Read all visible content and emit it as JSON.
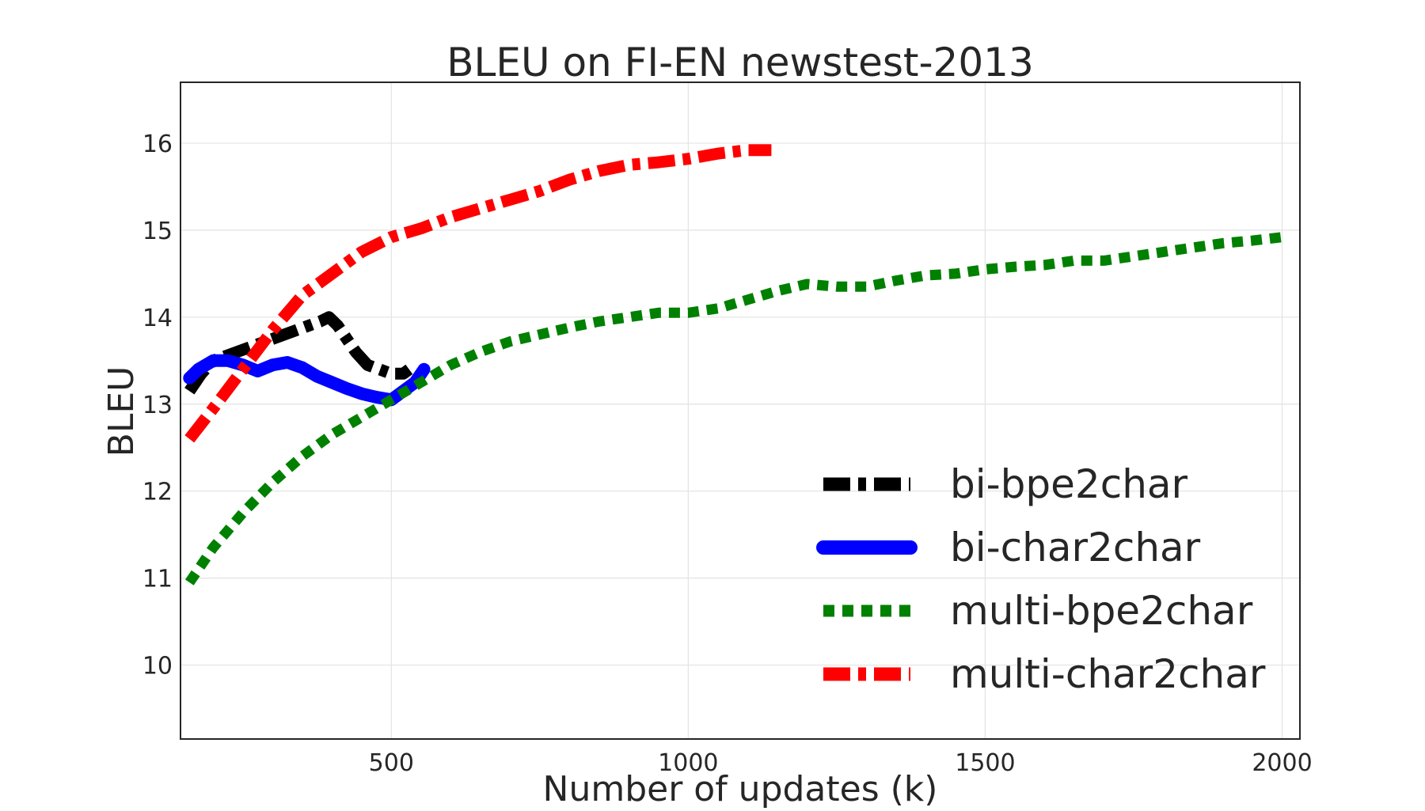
{
  "chart_data": {
    "type": "line",
    "title": "BLEU on FI-EN newstest-2013",
    "xlabel": "Number of updates (k)",
    "ylabel": "BLEU",
    "xlim": [
      145,
      2030
    ],
    "ylim": [
      9.15,
      16.7
    ],
    "xticks": [
      500,
      1000,
      1500,
      2000
    ],
    "yticks": [
      10,
      11,
      12,
      13,
      14,
      15,
      16
    ],
    "grid": true,
    "legend_position": "lower-right",
    "series": [
      {
        "name": "bi-bpe2char",
        "color": "#000000",
        "style": "dashdot",
        "x": [
          160,
          180,
          200,
          220,
          240,
          260,
          280,
          300,
          320,
          340,
          360,
          380,
          395,
          410,
          425,
          440,
          460,
          480,
          500,
          520,
          530
        ],
        "y": [
          13.15,
          13.35,
          13.5,
          13.55,
          13.6,
          13.65,
          13.7,
          13.75,
          13.8,
          13.85,
          13.9,
          13.95,
          14.0,
          13.9,
          13.75,
          13.6,
          13.45,
          13.4,
          13.35,
          13.35,
          13.4
        ]
      },
      {
        "name": "bi-char2char",
        "color": "#0000ff",
        "style": "solid",
        "x": [
          160,
          175,
          200,
          225,
          250,
          275,
          300,
          325,
          350,
          375,
          400,
          425,
          450,
          475,
          500,
          520,
          540,
          555
        ],
        "y": [
          13.3,
          13.4,
          13.5,
          13.5,
          13.45,
          13.38,
          13.45,
          13.48,
          13.42,
          13.32,
          13.25,
          13.18,
          13.12,
          13.08,
          13.05,
          13.15,
          13.25,
          13.4
        ]
      },
      {
        "name": "multi-bpe2char",
        "color": "#008000",
        "style": "dotted",
        "x": [
          160,
          200,
          250,
          300,
          350,
          400,
          450,
          500,
          550,
          600,
          650,
          700,
          750,
          800,
          850,
          900,
          950,
          1000,
          1050,
          1100,
          1150,
          1200,
          1250,
          1300,
          1350,
          1400,
          1450,
          1500,
          1550,
          1600,
          1650,
          1700,
          1750,
          1800,
          1850,
          1900,
          1950,
          2000
        ],
        "y": [
          10.95,
          11.35,
          11.75,
          12.1,
          12.4,
          12.65,
          12.85,
          13.05,
          13.25,
          13.45,
          13.6,
          13.72,
          13.8,
          13.88,
          13.95,
          14.0,
          14.05,
          14.05,
          14.1,
          14.2,
          14.3,
          14.38,
          14.35,
          14.35,
          14.42,
          14.48,
          14.5,
          14.55,
          14.58,
          14.6,
          14.65,
          14.65,
          14.7,
          14.75,
          14.8,
          14.85,
          14.88,
          14.92
        ]
      },
      {
        "name": "multi-char2char",
        "color": "#ff0000",
        "style": "dashdot",
        "x": [
          160,
          200,
          250,
          300,
          350,
          400,
          450,
          500,
          550,
          600,
          650,
          700,
          750,
          800,
          850,
          900,
          950,
          1000,
          1050,
          1100,
          1140
        ],
        "y": [
          12.6,
          12.95,
          13.4,
          13.85,
          14.25,
          14.5,
          14.75,
          14.92,
          15.02,
          15.15,
          15.25,
          15.35,
          15.45,
          15.58,
          15.68,
          15.75,
          15.78,
          15.82,
          15.88,
          15.92,
          15.92
        ]
      }
    ]
  }
}
